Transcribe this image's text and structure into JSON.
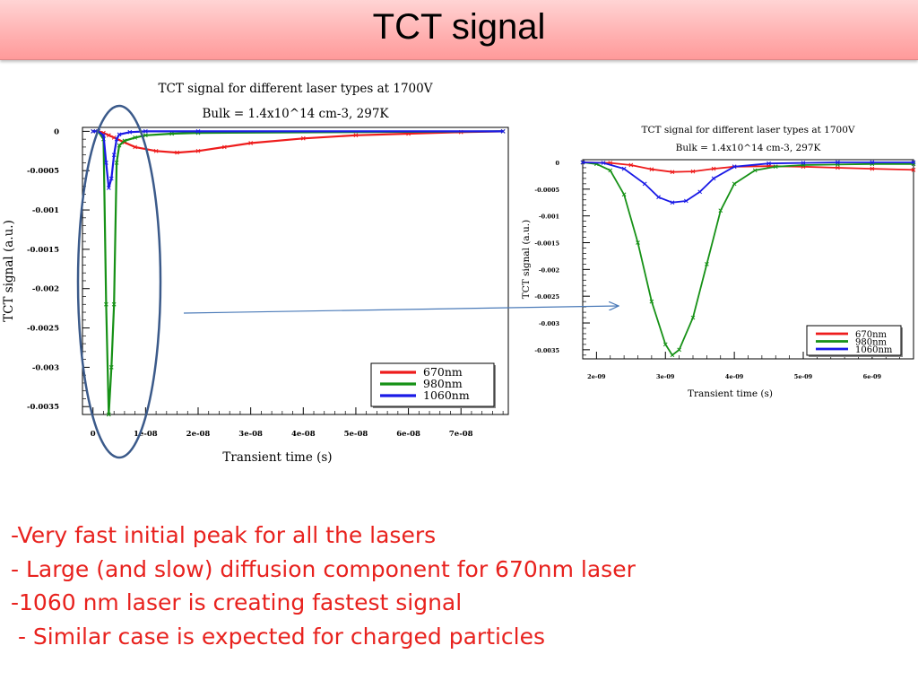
{
  "page": {
    "title": "TCT signal"
  },
  "bullets": [
    "-Very fast initial peak for all the lasers",
    "- Large (and slow) diffusion component for 670nm laser",
    "-1060 nm laser is creating fastest signal",
    " - Similar case is expected for charged particles"
  ],
  "colors": {
    "670nm": "#ee1c1c",
    "980nm": "#169116",
    "1060nm": "#1a1ae6",
    "highlight": "#3b5a8a",
    "arrow": "#4a7ab8"
  },
  "chart_data": [
    {
      "type": "line",
      "title": "TCT signal for different laser types at 1700V",
      "subtitle": "Bulk = 1.4x10^14 cm-3, 297K",
      "xlabel": "Transient time (s)",
      "ylabel": "TCT signal (a.u.)",
      "xlim": [
        -2e-09,
        7.9e-08
      ],
      "ylim": [
        -0.0036,
        5e-05
      ],
      "xticks": [
        0,
        1e-08,
        2e-08,
        3e-08,
        4e-08,
        5e-08,
        6e-08,
        7e-08
      ],
      "xtick_labels": [
        "0",
        "1e-08",
        "2e-08",
        "3e-08",
        "4e-08",
        "5e-08",
        "6e-08",
        "7e-08"
      ],
      "yticks": [
        0,
        -0.0005,
        -0.001,
        -0.0015,
        -0.002,
        -0.0025,
        -0.003,
        -0.0035
      ],
      "ytick_labels": [
        "0",
        "-0.0005",
        "-0.001",
        "-0.0015",
        "-0.002",
        "-0.0025",
        "-0.003",
        "-0.0035"
      ],
      "legend": "bottom-right",
      "series": [
        {
          "name": "670nm",
          "x": [
            0,
            1e-09,
            2e-09,
            3e-09,
            4e-09,
            6e-09,
            8e-09,
            1.2e-08,
            1.6e-08,
            2e-08,
            2.5e-08,
            3e-08,
            4e-08,
            5e-08,
            6e-08,
            7e-08,
            7.8e-08
          ],
          "y": [
            0,
            0,
            -2e-05,
            -5e-05,
            -8e-05,
            -0.00014,
            -0.0002,
            -0.00025,
            -0.00027,
            -0.00025,
            -0.0002,
            -0.00015,
            -9e-05,
            -5e-05,
            -3e-05,
            -1e-05,
            0
          ]
        },
        {
          "name": "980nm",
          "x": [
            0,
            1e-09,
            2e-09,
            2.5e-09,
            3e-09,
            3.5e-09,
            4e-09,
            4.5e-09,
            5e-09,
            6e-09,
            8e-09,
            1e-08,
            1.5e-08,
            2e-08,
            7.8e-08
          ],
          "y": [
            0,
            0,
            -0.0001,
            -0.0022,
            -0.0036,
            -0.003,
            -0.0022,
            -0.0004,
            -0.00018,
            -0.00012,
            -8e-05,
            -5e-05,
            -3e-05,
            -2e-05,
            0
          ]
        },
        {
          "name": "1060nm",
          "x": [
            0,
            1e-09,
            2e-09,
            2.5e-09,
            3e-09,
            3.5e-09,
            4e-09,
            4.5e-09,
            5e-09,
            7e-09,
            1e-08,
            2e-08,
            7.8e-08
          ],
          "y": [
            0,
            0,
            -5e-05,
            -0.0004,
            -0.00072,
            -0.0006,
            -0.0003,
            -0.0001,
            -4e-05,
            -1e-05,
            0,
            0,
            0
          ]
        }
      ]
    },
    {
      "type": "line",
      "title": "TCT signal for different laser types at 1700V",
      "subtitle": "Bulk = 1.4x10^14 cm-3, 297K",
      "xlabel": "Transient time (s)",
      "ylabel": "TCT signal (a.u.)",
      "xlim": [
        1.8e-09,
        6.6e-09
      ],
      "ylim": [
        -0.00367,
        5e-05
      ],
      "xticks": [
        2e-09,
        3e-09,
        4e-09,
        5e-09,
        6e-09
      ],
      "xtick_labels": [
        "2e-09",
        "3e-09",
        "4e-09",
        "5e-09",
        "6e-09"
      ],
      "yticks": [
        0,
        -0.0005,
        -0.001,
        -0.0015,
        -0.002,
        -0.0025,
        -0.003,
        -0.0035
      ],
      "ytick_labels": [
        "0",
        "-0.0005",
        "-0.001",
        "-0.0015",
        "-0.002",
        "-0.0025",
        "-0.003",
        "-0.0035"
      ],
      "legend": "bottom-right",
      "series": [
        {
          "name": "670nm",
          "x": [
            1.8e-09,
            2.2e-09,
            2.5e-09,
            2.8e-09,
            3.1e-09,
            3.4e-09,
            3.7e-09,
            4e-09,
            4.5e-09,
            5e-09,
            5.5e-09,
            6e-09,
            6.6e-09
          ],
          "y": [
            0,
            -1e-05,
            -5e-05,
            -0.00013,
            -0.00018,
            -0.00017,
            -0.00012,
            -8e-05,
            -7e-05,
            -8e-05,
            -0.0001,
            -0.00012,
            -0.00014
          ]
        },
        {
          "name": "980nm",
          "x": [
            1.8e-09,
            2e-09,
            2.2e-09,
            2.4e-09,
            2.6e-09,
            2.8e-09,
            3e-09,
            3.1e-09,
            3.2e-09,
            3.4e-09,
            3.6e-09,
            3.8e-09,
            4e-09,
            4.3e-09,
            4.6e-09,
            5e-09,
            5.5e-09,
            6e-09,
            6.6e-09
          ],
          "y": [
            0,
            -3e-05,
            -0.00015,
            -0.0006,
            -0.0015,
            -0.0026,
            -0.0034,
            -0.0036,
            -0.0035,
            -0.0029,
            -0.0019,
            -0.0009,
            -0.0004,
            -0.00015,
            -8e-05,
            -5e-05,
            -4e-05,
            -3e-05,
            -3e-05
          ]
        },
        {
          "name": "1060nm",
          "x": [
            1.8e-09,
            2.1e-09,
            2.4e-09,
            2.7e-09,
            2.9e-09,
            3.1e-09,
            3.3e-09,
            3.5e-09,
            3.7e-09,
            4e-09,
            4.5e-09,
            5e-09,
            5.5e-09,
            6e-09,
            6.6e-09
          ],
          "y": [
            0,
            -1e-05,
            -0.00012,
            -0.0004,
            -0.00065,
            -0.00075,
            -0.00072,
            -0.00055,
            -0.0003,
            -8e-05,
            -2e-05,
            -1e-05,
            0,
            0,
            0
          ]
        }
      ]
    }
  ]
}
